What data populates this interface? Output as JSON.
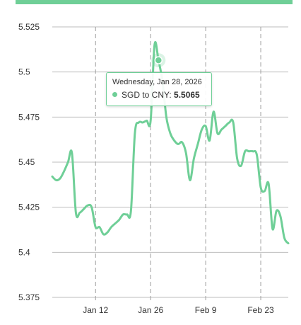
{
  "colors": {
    "line": "#6fcf97",
    "grid": "#bdbdbd",
    "text": "#333333"
  },
  "tooltip": {
    "date": "Wednesday, Jan 28, 2026",
    "series_label": "SGD to CNY:",
    "value": "5.5065"
  },
  "chart_data": {
    "type": "line",
    "xlim": [
      "2026-01-01",
      "2026-03-02"
    ],
    "ylim": [
      5.375,
      5.525
    ],
    "yticks": [
      "5.525",
      "5.5",
      "5.475",
      "5.45",
      "5.425",
      "5.4",
      "5.375"
    ],
    "xticks": [
      {
        "label": "Jan 12",
        "date": "2026-01-12"
      },
      {
        "label": "Jan 26",
        "date": "2026-01-26"
      },
      {
        "label": "Feb 9",
        "date": "2026-02-09"
      },
      {
        "label": "Feb 23",
        "date": "2026-02-23"
      }
    ],
    "grid": true,
    "highlight": {
      "x": "2026-01-28",
      "y": 5.5065
    },
    "series": [
      {
        "values": [
          [
            "2026-01-01",
            5.442
          ],
          [
            "2026-01-02",
            5.44
          ],
          [
            "2026-01-03",
            5.441
          ],
          [
            "2026-01-04",
            5.445
          ],
          [
            "2026-01-05",
            5.45
          ],
          [
            "2026-01-06",
            5.455
          ],
          [
            "2026-01-07",
            5.422
          ],
          [
            "2026-01-08",
            5.422
          ],
          [
            "2026-01-09",
            5.424
          ],
          [
            "2026-01-10",
            5.426
          ],
          [
            "2026-01-11",
            5.425
          ],
          [
            "2026-01-12",
            5.414
          ],
          [
            "2026-01-13",
            5.414
          ],
          [
            "2026-01-14",
            5.41
          ],
          [
            "2026-01-15",
            5.411
          ],
          [
            "2026-01-16",
            5.414
          ],
          [
            "2026-01-17",
            5.416
          ],
          [
            "2026-01-18",
            5.418
          ],
          [
            "2026-01-19",
            5.421
          ],
          [
            "2026-01-20",
            5.421
          ],
          [
            "2026-01-21",
            5.423
          ],
          [
            "2026-01-22",
            5.466
          ],
          [
            "2026-01-23",
            5.472
          ],
          [
            "2026-01-24",
            5.472
          ],
          [
            "2026-01-25",
            5.473
          ],
          [
            "2026-01-26",
            5.473
          ],
          [
            "2026-01-27",
            5.515
          ],
          [
            "2026-01-28",
            5.5065
          ],
          [
            "2026-01-29",
            5.495
          ],
          [
            "2026-01-30",
            5.475
          ],
          [
            "2026-01-31",
            5.466
          ],
          [
            "2026-02-01",
            5.462
          ],
          [
            "2026-02-02",
            5.46
          ],
          [
            "2026-02-03",
            5.461
          ],
          [
            "2026-02-04",
            5.455
          ],
          [
            "2026-02-05",
            5.44
          ],
          [
            "2026-02-06",
            5.452
          ],
          [
            "2026-02-07",
            5.46
          ],
          [
            "2026-02-08",
            5.468
          ],
          [
            "2026-02-09",
            5.47
          ],
          [
            "2026-02-10",
            5.462
          ],
          [
            "2026-02-11",
            5.478
          ],
          [
            "2026-02-12",
            5.466
          ],
          [
            "2026-02-13",
            5.468
          ],
          [
            "2026-02-14",
            5.47
          ],
          [
            "2026-02-15",
            5.472
          ],
          [
            "2026-02-16",
            5.472
          ],
          [
            "2026-02-17",
            5.452
          ],
          [
            "2026-02-18",
            5.448
          ],
          [
            "2026-02-19",
            5.456
          ],
          [
            "2026-02-20",
            5.456
          ],
          [
            "2026-02-21",
            5.456
          ],
          [
            "2026-02-22",
            5.454
          ],
          [
            "2026-02-23",
            5.436
          ],
          [
            "2026-02-24",
            5.434
          ],
          [
            "2026-02-25",
            5.438
          ],
          [
            "2026-02-26",
            5.413
          ],
          [
            "2026-02-27",
            5.423
          ],
          [
            "2026-02-28",
            5.42
          ],
          [
            "2026-03-01",
            5.408
          ],
          [
            "2026-03-02",
            5.405
          ]
        ]
      }
    ]
  }
}
